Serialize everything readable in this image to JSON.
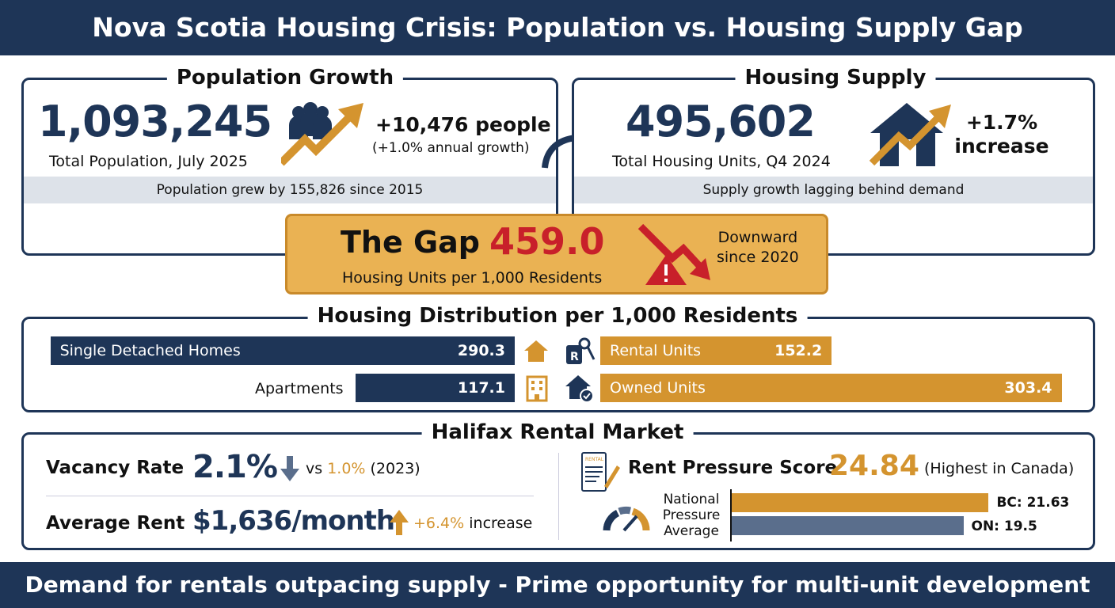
{
  "header": {
    "title": "Nova Scotia Housing Crisis: Population vs. Housing Supply Gap"
  },
  "population": {
    "title": "Population Growth",
    "value": "1,093,245",
    "caption": "Total Population, July 2025",
    "change": "+10,476 people",
    "growth": "(+1.0% annual growth)",
    "note": "Population grew by 155,826 since 2015",
    "icon": "people-growth-icon"
  },
  "housing": {
    "title": "Housing Supply",
    "value": "495,602",
    "caption": "Total Housing Units, Q4 2024",
    "change_line1": "+1.7%",
    "change_line2": "increase",
    "note": "Supply growth lagging behind demand",
    "icon": "house-growth-icon"
  },
  "gap": {
    "label": "The Gap",
    "value": "459.0",
    "caption": "Housing Units per 1,000 Residents",
    "trend_line1": "Downward",
    "trend_line2": "since 2020",
    "icon": "warning-down-icon"
  },
  "distribution": {
    "title": "Housing Distribution per 1,000 Residents",
    "items": [
      {
        "label": "Single Detached Homes",
        "value": 290.3,
        "icon": "house-icon"
      },
      {
        "label": "Apartments",
        "value": 117.1,
        "icon": "building-icon"
      },
      {
        "label": "Rental Units",
        "value": 152.2,
        "icon": "rental-key-icon"
      },
      {
        "label": "Owned Units",
        "value": 303.4,
        "icon": "house-check-icon"
      }
    ]
  },
  "rental": {
    "title": "Halifax Rental Market",
    "vacancy": {
      "label": "Vacancy Rate",
      "value": "2.1%",
      "vs": "vs",
      "prev": "1.0%",
      "year": "(2023)",
      "icon": "arrow-down-icon"
    },
    "rent": {
      "label": "Average Rent",
      "value": "$1,636/month",
      "change": "+6.4%",
      "change_text": "increase",
      "icon": "arrow-up-icon"
    },
    "pressure": {
      "label": "Rent Pressure Score",
      "value": "24.84",
      "note": "(Highest in Canada)",
      "icon": "rental-document-icon",
      "avg_label_1": "National",
      "avg_label_2": "Pressure",
      "avg_label_3": "Average",
      "bars": [
        {
          "label": "BC: 21.63",
          "value": 21.63
        },
        {
          "label": "ON: 19.5",
          "value": 19.5
        }
      ]
    }
  },
  "colors": {
    "navy": "#1e3557",
    "gold": "#d4942f",
    "red": "#c8202a",
    "slate": "#5a6e8c"
  },
  "footer": {
    "text": "Demand for rentals outpacing supply - Prime opportunity for multi-unit development"
  }
}
